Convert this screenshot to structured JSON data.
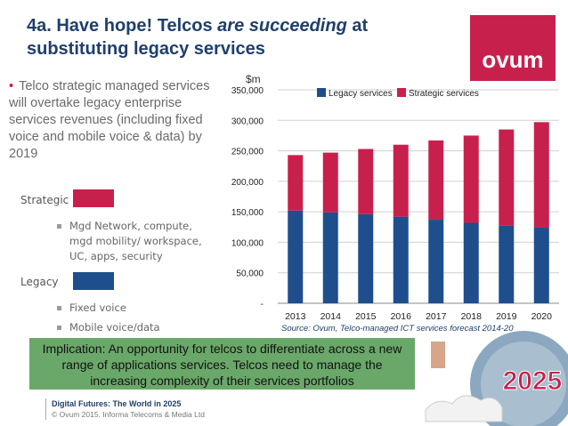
{
  "header": {
    "title_part1": "4a. Have hope! Telcos ",
    "title_em": "are succeeding",
    "title_part2": " at substituting legacy services",
    "logo_text": "ovum"
  },
  "left_panel": {
    "bullet": "Telco strategic managed services will overtake legacy enterprise services revenues (including fixed voice and mobile voice & data) by 2019",
    "strategic_label": "Strategic",
    "strategic_items": [
      "Mgd Network, compute, mgd mobility/ workspace, UC, apps, security"
    ],
    "legacy_label": "Legacy",
    "legacy_items": [
      "Fixed voice",
      "Mobile voice/data"
    ]
  },
  "implication": "Implication: An opportunity for telcos to differentiate across a new range of applications services. Telcos need to manage the increasing complexity of their services portfolios",
  "footer": {
    "line1": "Digital Futures: The World in 2025",
    "line2": "© Ovum 2015. Informa Telecoms & Media Ltd"
  },
  "badge_text": "2025",
  "source": "Source: Ovum, Telco-managed ICT services forecast 2014-20",
  "colors": {
    "legacy": "#1f4e8c",
    "strategic": "#c8204c",
    "title": "#1f3f6b"
  },
  "chart_data": {
    "type": "bar",
    "stacked": true,
    "unit_label": "$m",
    "categories": [
      "2013",
      "2014",
      "2015",
      "2016",
      "2017",
      "2018",
      "2019",
      "2020"
    ],
    "series": [
      {
        "name": "Legacy services",
        "values": [
          152000,
          149000,
          146000,
          142000,
          137000,
          132000,
          127000,
          124000
        ]
      },
      {
        "name": "Strategic services",
        "values": [
          91000,
          98000,
          107000,
          118000,
          130000,
          143000,
          158000,
          173000
        ]
      }
    ],
    "yticks": [
      "-",
      "50,000",
      "100,000",
      "150,000",
      "200,000",
      "250,000",
      "300,000",
      "350,000"
    ],
    "ylim": [
      0,
      350000
    ],
    "grid": true,
    "legend_position": "top"
  }
}
